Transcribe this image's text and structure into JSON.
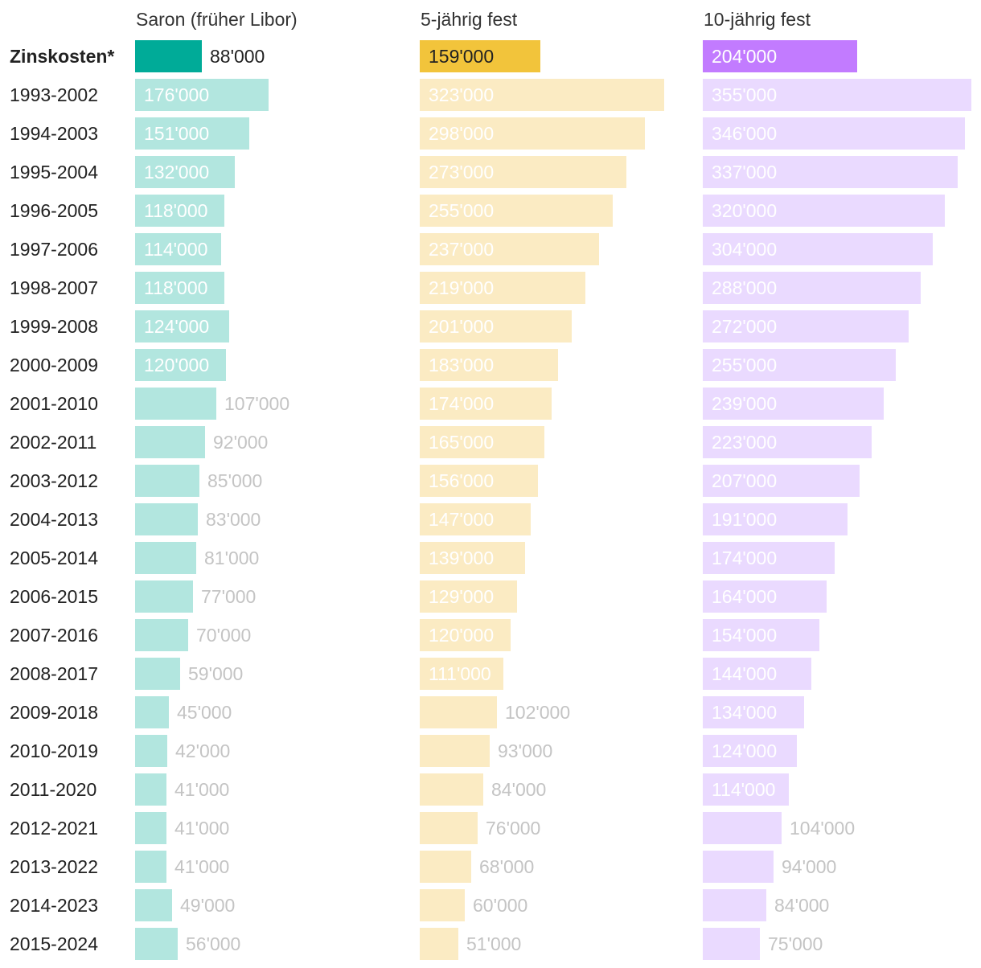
{
  "chart_data": {
    "type": "bar",
    "orientation": "horizontal",
    "unit": "CHF",
    "categories": [
      "Zinskosten*",
      "1993-2002",
      "1994-2003",
      "1995-2004",
      "1996-2005",
      "1997-2006",
      "1998-2007",
      "1999-2008",
      "2000-2009",
      "2001-2010",
      "2002-2011",
      "2003-2012",
      "2004-2013",
      "2005-2014",
      "2006-2015",
      "2007-2016",
      "2008-2017",
      "2009-2018",
      "2010-2019",
      "2011-2020",
      "2012-2021",
      "2013-2022",
      "2014-2023",
      "2015-2024"
    ],
    "highlight_category": "Zinskosten*",
    "series": [
      {
        "name": "Saron (früher Libor)",
        "color": "#00ab98",
        "light_color": "#b2e6df",
        "values": [
          88000,
          176000,
          151000,
          132000,
          118000,
          114000,
          118000,
          124000,
          120000,
          107000,
          92000,
          85000,
          83000,
          81000,
          77000,
          70000,
          59000,
          45000,
          42000,
          41000,
          41000,
          41000,
          49000,
          56000
        ],
        "labels": [
          "88'000",
          "176'000",
          "151'000",
          "132'000",
          "118'000",
          "114'000",
          "118'000",
          "124'000",
          "120'000",
          "107'000",
          "92'000",
          "85'000",
          "83'000",
          "81'000",
          "77'000",
          "70'000",
          "59'000",
          "45'000",
          "42'000",
          "41'000",
          "41'000",
          "41'000",
          "49'000",
          "56'000"
        ]
      },
      {
        "name": "5-jährig fest",
        "color": "#f2c43b",
        "light_color": "#fbebc3",
        "values": [
          159000,
          323000,
          298000,
          273000,
          255000,
          237000,
          219000,
          201000,
          183000,
          174000,
          165000,
          156000,
          147000,
          139000,
          129000,
          120000,
          111000,
          102000,
          93000,
          84000,
          76000,
          68000,
          60000,
          51000
        ],
        "labels": [
          "159'000",
          "323'000",
          "298'000",
          "273'000",
          "255'000",
          "237'000",
          "219'000",
          "201'000",
          "183'000",
          "174'000",
          "165'000",
          "156'000",
          "147'000",
          "139'000",
          "129'000",
          "120'000",
          "111'000",
          "102'000",
          "93'000",
          "84'000",
          "76'000",
          "68'000",
          "60'000",
          "51'000"
        ]
      },
      {
        "name": "10-jährig fest",
        "color": "#c27bff",
        "light_color": "#eadaff",
        "values": [
          204000,
          355000,
          346000,
          337000,
          320000,
          304000,
          288000,
          272000,
          255000,
          239000,
          223000,
          207000,
          191000,
          174000,
          164000,
          154000,
          144000,
          134000,
          124000,
          114000,
          104000,
          94000,
          84000,
          75000
        ],
        "labels": [
          "204'000",
          "355'000",
          "346'000",
          "337'000",
          "320'000",
          "304'000",
          "288'000",
          "272'000",
          "255'000",
          "239'000",
          "223'000",
          "207'000",
          "191'000",
          "174'000",
          "164'000",
          "154'000",
          "144'000",
          "134'000",
          "124'000",
          "114'000",
          "104'000",
          "94'000",
          "84'000",
          "75'000"
        ]
      }
    ]
  }
}
